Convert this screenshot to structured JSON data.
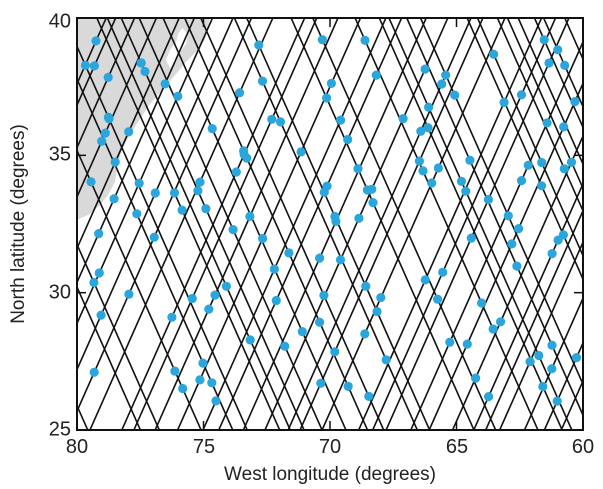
{
  "map": {
    "x_axis": {
      "label": "West longitude (degrees)",
      "range": [
        80,
        60
      ],
      "ticks": [
        80,
        75,
        70,
        65,
        60
      ],
      "tick_labels": [
        "80",
        "75",
        "70",
        "65",
        "60"
      ]
    },
    "y_axis": {
      "label": "North latitude (degrees)",
      "range": [
        25,
        40
      ],
      "ticks": [
        25,
        30,
        35,
        40
      ],
      "tick_labels": [
        "25",
        "30",
        "35",
        "40"
      ]
    },
    "land_color": "#d9d9d9",
    "track_color": "#111111",
    "point_color": "#2aa6dc"
  }
}
